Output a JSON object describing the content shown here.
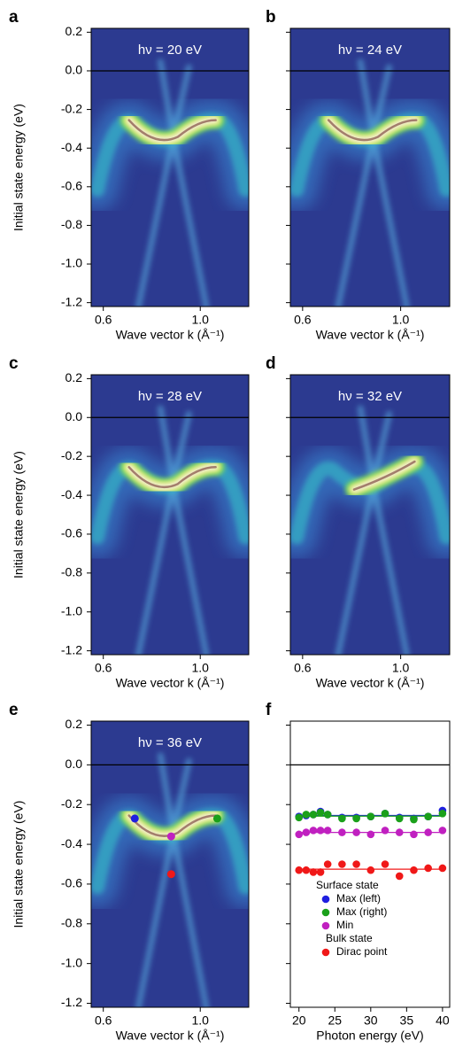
{
  "chart_data": [
    {
      "type": "heatmap",
      "panel_label": "a",
      "annotation": "hν = 20 eV",
      "ylabel": "Initial state energy (eV)",
      "xlabel": "Wave vector k (Å⁻¹)",
      "xlim": [
        0.55,
        1.2
      ],
      "xticks": [
        0.6,
        {
          "value": 1,
          "label": "1.0"
        }
      ],
      "ylim": [
        -1.22,
        0.22
      ],
      "yticks": [
        0.2,
        {
          "value": 0,
          "label": "0.0"
        },
        -0.2,
        -0.4,
        -0.6,
        -0.8,
        {
          "value": -1,
          "label": "-1.0"
        },
        -1.2
      ],
      "ytick_labels": true,
      "reference_line": 0
    },
    {
      "type": "heatmap",
      "panel_label": "b",
      "annotation": "hν = 24 eV",
      "xlabel": "Wave vector k (Å⁻¹)",
      "xlim": [
        0.55,
        1.2
      ],
      "xticks": [
        0.6,
        {
          "value": 1,
          "label": "1.0"
        }
      ],
      "ylim": [
        -1.22,
        0.22
      ],
      "yticks": [
        0.2,
        0,
        -0.2,
        -0.4,
        -0.6,
        -0.8,
        -1,
        -1.2
      ],
      "ytick_labels": false,
      "reference_line": 0
    },
    {
      "type": "heatmap",
      "panel_label": "c",
      "annotation": "hν = 28 eV",
      "ylabel": "Initial state energy (eV)",
      "xlabel": "Wave vector k (Å⁻¹)",
      "xlim": [
        0.55,
        1.2
      ],
      "xticks": [
        0.6,
        {
          "value": 1,
          "label": "1.0"
        }
      ],
      "ylim": [
        -1.22,
        0.22
      ],
      "yticks": [
        0.2,
        {
          "value": 0,
          "label": "0.0"
        },
        -0.2,
        -0.4,
        -0.6,
        -0.8,
        {
          "value": -1,
          "label": "-1.0"
        },
        -1.2
      ],
      "ytick_labels": true,
      "reference_line": 0
    },
    {
      "type": "heatmap",
      "panel_label": "d",
      "annotation": "hν = 32 eV",
      "xlabel": "Wave vector k (Å⁻¹)",
      "xlim": [
        0.55,
        1.2
      ],
      "xticks": [
        0.6,
        {
          "value": 1,
          "label": "1.0"
        }
      ],
      "ylim": [
        -1.22,
        0.22
      ],
      "yticks": [
        0.2,
        0,
        -0.2,
        -0.4,
        -0.6,
        -0.8,
        -1,
        -1.2
      ],
      "ytick_labels": false,
      "reference_line": 0
    },
    {
      "type": "heatmap",
      "panel_label": "e",
      "annotation": "hν = 36 eV",
      "ylabel": "Initial state energy (eV)",
      "xlabel": "Wave vector k (Å⁻¹)",
      "xlim": [
        0.55,
        1.2
      ],
      "xticks": [
        0.6,
        {
          "value": 1,
          "label": "1.0"
        }
      ],
      "ylim": [
        -1.22,
        0.22
      ],
      "yticks": [
        0.2,
        {
          "value": 0,
          "label": "0.0"
        },
        -0.2,
        -0.4,
        -0.6,
        -0.8,
        {
          "value": -1,
          "label": "-1.0"
        },
        -1.2
      ],
      "ytick_labels": true,
      "reference_line": 0,
      "markers": {
        "x": [
          0.73,
          1.07,
          0.88,
          0.88
        ],
        "y": [
          -0.27,
          -0.27,
          -0.36,
          -0.55
        ],
        "colors": [
          "#1f1fe0",
          "#1aa01a",
          "#c020c0",
          "#f01818"
        ]
      }
    },
    {
      "type": "scatter",
      "panel_label": "f",
      "xlabel": "Photon energy (eV)",
      "xlim": [
        18.8,
        41
      ],
      "xticks": [
        20,
        25,
        30,
        35,
        40
      ],
      "ylim": [
        -1.22,
        0.22
      ],
      "yticks": [
        0.2,
        0,
        -0.2,
        -0.4,
        -0.6,
        -0.8,
        -1,
        -1.2
      ],
      "ytick_labels": false,
      "reference_line": 0,
      "x": [
        20,
        21,
        22,
        23,
        24,
        26,
        28,
        30,
        32,
        34,
        36,
        38,
        40
      ],
      "groups": [
        {
          "name": "Surface state",
          "series": [
            {
              "name": "Max (left)",
              "color": "#1f1fe0",
              "fit": -0.255,
              "values": [
                -0.26,
                -0.255,
                -0.25,
                -0.235,
                -0.25,
                -0.265,
                -0.265,
                -0.26,
                -0.245,
                -0.265,
                -0.27,
                -0.26,
                -0.23
              ]
            },
            {
              "name": "Max (right)",
              "color": "#1aa01a",
              "fit": -0.258,
              "values": [
                -0.265,
                -0.25,
                -0.25,
                -0.24,
                -0.25,
                -0.27,
                -0.27,
                -0.26,
                -0.245,
                -0.27,
                -0.275,
                -0.26,
                -0.245
              ]
            },
            {
              "name": "Min",
              "color": "#c020c0",
              "fit": -0.34,
              "values": [
                -0.35,
                -0.34,
                -0.33,
                -0.33,
                -0.33,
                -0.34,
                -0.34,
                -0.35,
                -0.33,
                -0.34,
                -0.35,
                -0.34,
                -0.33
              ]
            }
          ]
        },
        {
          "name": "Bulk state",
          "series": [
            {
              "name": "Dirac point",
              "color": "#f01818",
              "fit": -0.525,
              "values": [
                -0.53,
                -0.53,
                -0.54,
                -0.54,
                -0.5,
                -0.5,
                -0.5,
                -0.53,
                -0.5,
                -0.56,
                -0.53,
                -0.52,
                -0.52
              ]
            }
          ]
        }
      ]
    }
  ]
}
